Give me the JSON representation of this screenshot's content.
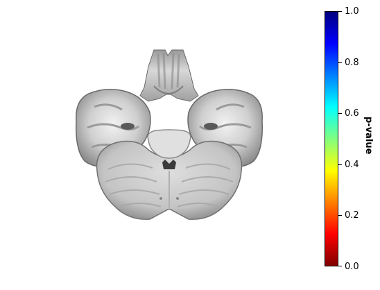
{
  "colorbar": {
    "label": "p-value",
    "ticks": [
      "0.0",
      "0.2",
      "0.4",
      "0.6",
      "0.8",
      "1.0"
    ],
    "colors": [
      "#800000",
      "#ff0000",
      "#ff8000",
      "#ffff00",
      "#80ff80",
      "#00ffff",
      "#0080ff",
      "#0000ff",
      "#000080"
    ]
  },
  "image": {
    "subject": "axial-brain-slice-cerebellum-grayscale"
  }
}
